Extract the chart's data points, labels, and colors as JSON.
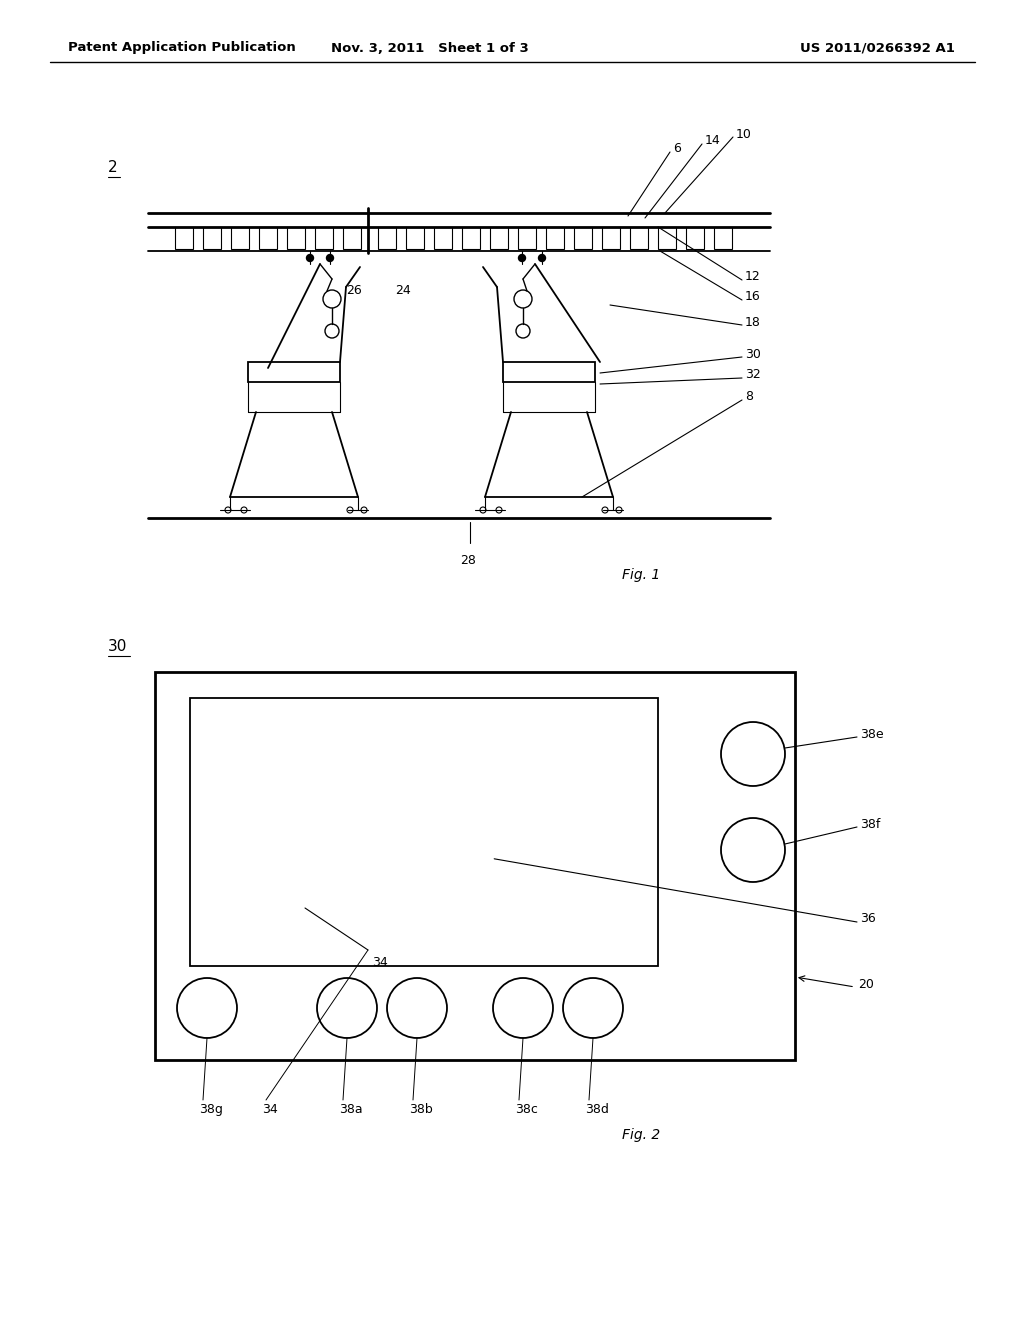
{
  "bg": "#ffffff",
  "header_left": "Patent Application Publication",
  "header_mid": "Nov. 3, 2011   Sheet 1 of 3",
  "header_right": "US 2011/0266392 A1",
  "fig1_caption": "Fig. 1",
  "fig2_caption": "Fig. 2",
  "fig1_label": "2",
  "fig2_label": "30"
}
